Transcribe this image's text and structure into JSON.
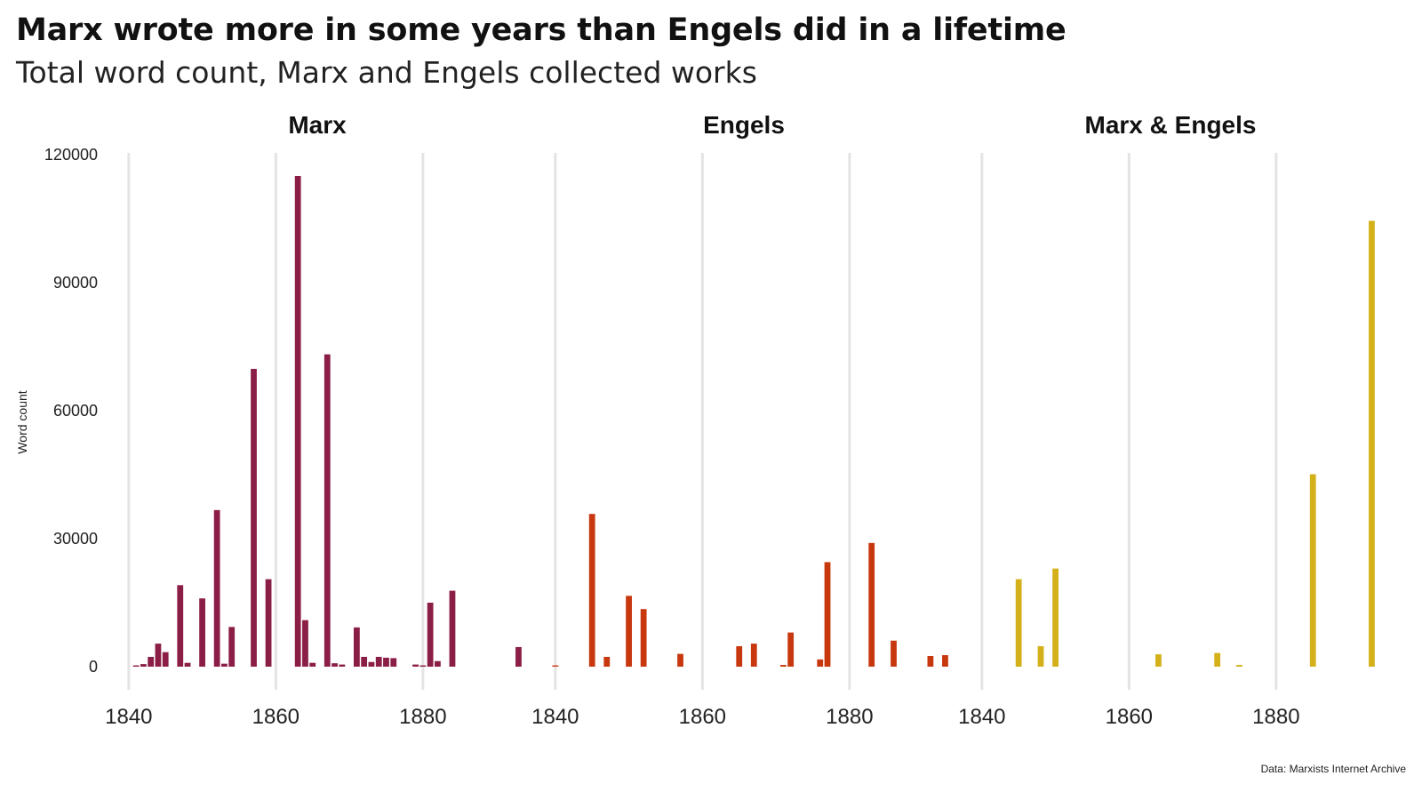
{
  "header": {
    "title": "Marx wrote more in some years than Engels did in a lifetime",
    "subtitle": "Total word count, Marx and Engels collected works"
  },
  "footer": {
    "caption": "Data: Marxists Internet Archive"
  },
  "chart_data": {
    "type": "bar",
    "ylabel": "Word count",
    "ylim": [
      0,
      120000
    ],
    "yticks": [
      0,
      30000,
      60000,
      90000,
      120000
    ],
    "xticks": [
      1840,
      1860,
      1880
    ],
    "xlim": [
      1837,
      1895
    ],
    "grid": "vertical",
    "facets": [
      {
        "name": "Marx",
        "color": "#8B1E46",
        "years": [
          1841,
          1842,
          1843,
          1844,
          1845,
          1847,
          1848,
          1850,
          1852,
          1853,
          1854,
          1857,
          1859,
          1863,
          1864,
          1865,
          1867,
          1868,
          1869,
          1871,
          1872,
          1873,
          1874,
          1875,
          1876,
          1879,
          1880,
          1881,
          1882,
          1884,
          1893
        ],
        "values": [
          300,
          600,
          2300,
          5400,
          3400,
          19100,
          900,
          16000,
          36700,
          700,
          9300,
          69800,
          20500,
          115000,
          10900,
          900,
          73200,
          800,
          500,
          9200,
          2300,
          1100,
          2300,
          2100,
          2000,
          500,
          300,
          15000,
          1300,
          17800,
          4600
        ]
      },
      {
        "name": "Engels",
        "color": "#C8380F",
        "years": [
          1840,
          1845,
          1847,
          1850,
          1852,
          1857,
          1865,
          1867,
          1871,
          1872,
          1876,
          1877,
          1883,
          1886,
          1891,
          1893
        ],
        "values": [
          300,
          35800,
          2300,
          16600,
          13500,
          3000,
          4800,
          5400,
          400,
          8000,
          1700,
          24500,
          29000,
          6100,
          2500,
          2700
        ]
      },
      {
        "name": "Marx & Engels",
        "color": "#D4B11A",
        "years": [
          1845,
          1848,
          1850,
          1864,
          1872,
          1875,
          1885,
          1893
        ],
        "values": [
          20500,
          4800,
          23000,
          2900,
          3200,
          400,
          45100,
          104500
        ]
      }
    ]
  }
}
